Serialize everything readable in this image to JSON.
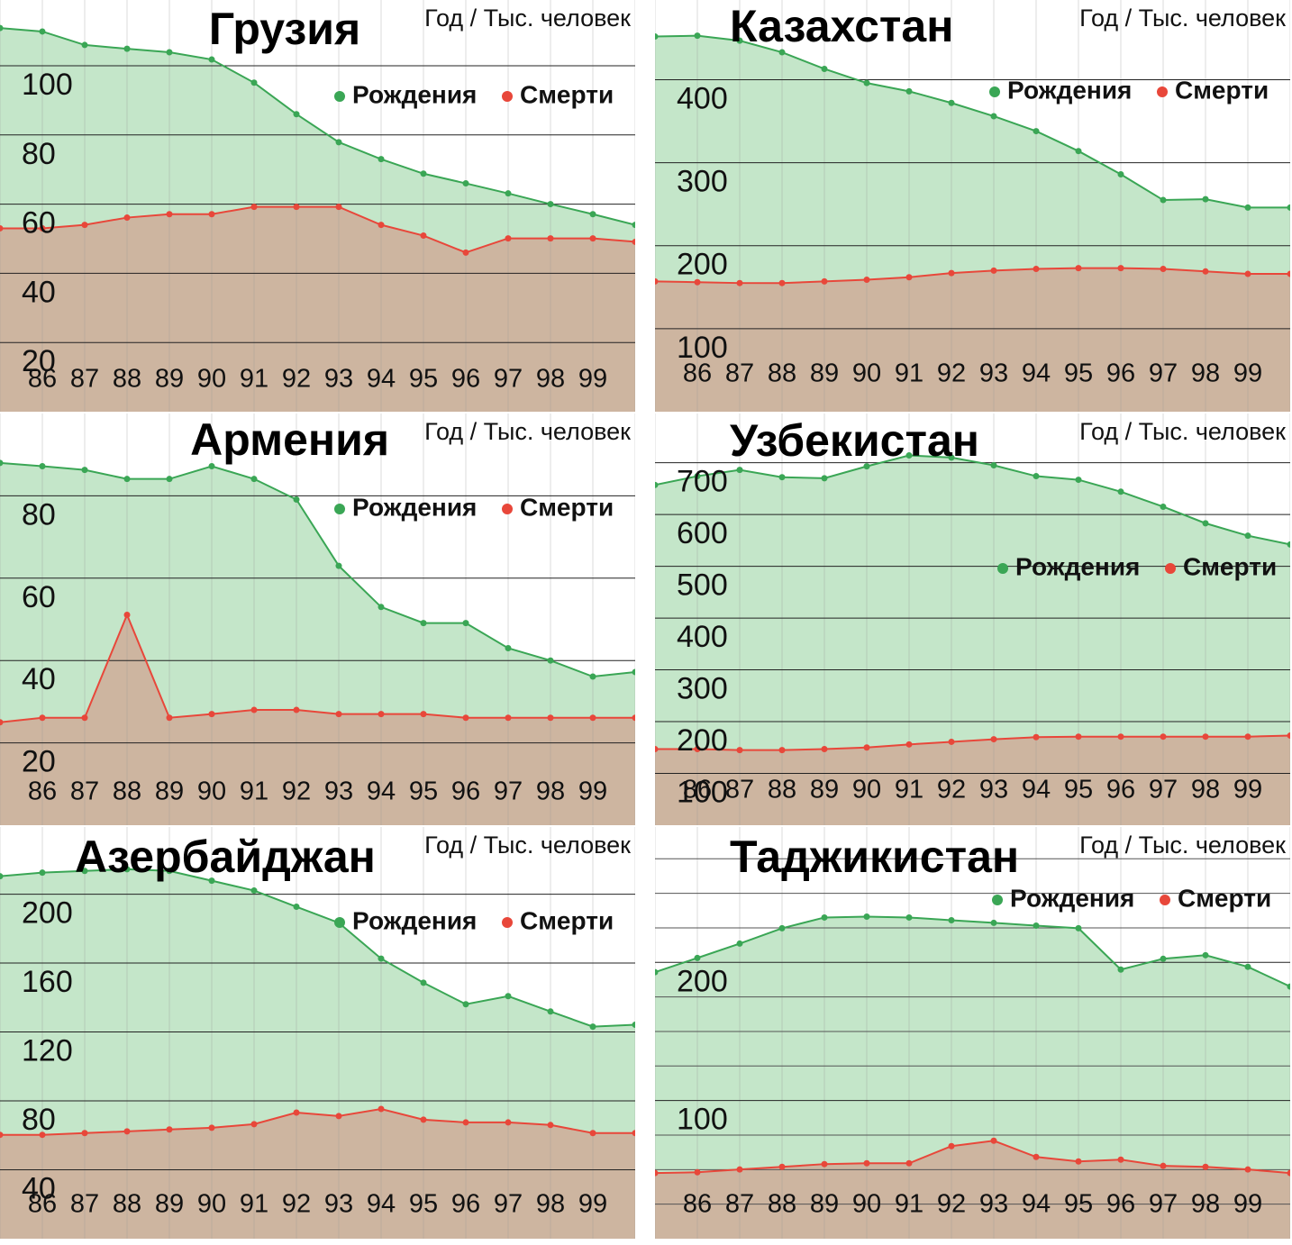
{
  "chart_data": [
    {
      "type": "area",
      "title": "Грузия",
      "note": "Год / Тыс. человек",
      "categories": [
        null,
        "86",
        "87",
        "88",
        "89",
        "90",
        "91",
        "92",
        "93",
        "94",
        "95",
        "96",
        "97",
        "98",
        "99",
        null
      ],
      "series": [
        {
          "name": "Рождения",
          "color": "#3aa655",
          "fill": "#c4e6c9",
          "values": [
            110.9,
            109.9,
            106,
            104.9,
            103.9,
            101.8,
            95.1,
            86,
            77.9,
            73,
            68.8,
            66,
            63.1,
            60,
            57.1,
            54
          ]
        },
        {
          "name": "Смерти",
          "color": "#e8473a",
          "fill": "#cdb5a0",
          "values": [
            53,
            53,
            54,
            56.1,
            57.1,
            57.1,
            59.2,
            59.2,
            59.2,
            54,
            50.9,
            46,
            50.1,
            50.1,
            50.1,
            49.1
          ]
        }
      ],
      "ylim": [
        0,
        119
      ],
      "yticks": [
        20,
        40,
        60,
        80,
        100
      ],
      "grid": true
    },
    {
      "type": "area",
      "title": "Казахстан",
      "note": "Год / Тыс. человек",
      "categories": [
        null,
        "86",
        "87",
        "88",
        "89",
        "90",
        "91",
        "92",
        "93",
        "94",
        "95",
        "96",
        "97",
        "98",
        "99",
        null
      ],
      "series": [
        {
          "name": "Рождения",
          "color": "#3aa655",
          "fill": "#c4e6c9",
          "values": [
            452,
            453,
            447,
            433,
            413,
            396,
            386,
            372,
            356,
            338,
            314,
            286,
            255,
            256,
            246,
            246
          ]
        },
        {
          "name": "Смерти",
          "color": "#e8473a",
          "fill": "#cdb5a0",
          "values": [
            157,
            156,
            155,
            155,
            157,
            159,
            162,
            167,
            170,
            172,
            173,
            173,
            172,
            169,
            166,
            166
          ]
        }
      ],
      "ylim": [
        0,
        496
      ],
      "yticks": [
        100,
        200,
        300,
        400
      ],
      "grid": true
    },
    {
      "type": "area",
      "title": "Армения",
      "note": "Год / Тыс. человек",
      "categories": [
        null,
        "86",
        "87",
        "88",
        "89",
        "90",
        "91",
        "92",
        "93",
        "94",
        "95",
        "96",
        "97",
        "98",
        "99",
        null
      ],
      "series": [
        {
          "name": "Рождения",
          "color": "#3aa655",
          "fill": "#c4e6c9",
          "values": [
            88,
            87.2,
            86.3,
            84.1,
            84.1,
            87.2,
            84.1,
            79.1,
            63,
            53,
            49.1,
            49.1,
            43,
            40,
            36.1,
            37.2
          ]
        },
        {
          "name": "Смерти",
          "color": "#e8473a",
          "fill": "#cdb5a0",
          "values": [
            25,
            26.1,
            26.1,
            51.1,
            26.1,
            27,
            28,
            28,
            27,
            27,
            27,
            26.1,
            26.1,
            26.1,
            26.1,
            26.1
          ]
        }
      ],
      "ylim": [
        0,
        100
      ],
      "yticks": [
        20,
        40,
        60,
        80
      ],
      "grid": true
    },
    {
      "type": "area",
      "title": "Узбекистан",
      "note": "Год / Тыс. человек",
      "categories": [
        null,
        "86",
        "87",
        "88",
        "89",
        "90",
        "91",
        "92",
        "93",
        "94",
        "95",
        "96",
        "97",
        "98",
        "99",
        null
      ],
      "series": [
        {
          "name": "Рождения",
          "color": "#3aa655",
          "fill": "#c4e6c9",
          "values": [
            657,
            674,
            686,
            672,
            670,
            693,
            714,
            710,
            695,
            674,
            667,
            644,
            615,
            583,
            559,
            542
          ]
        },
        {
          "name": "Смерти",
          "color": "#e8473a",
          "fill": "#cdb5a0",
          "values": [
            147,
            147,
            145,
            145,
            147,
            150,
            156,
            161,
            166,
            170,
            171,
            171,
            171,
            171,
            171,
            173
          ]
        }
      ],
      "ylim": [
        0,
        795
      ],
      "yticks": [
        100,
        200,
        300,
        400,
        500,
        600,
        700
      ],
      "grid": true
    },
    {
      "type": "area",
      "title": "Азербайджан",
      "note": "Год / Тыс. человек",
      "categories": [
        null,
        "86",
        "87",
        "88",
        "89",
        "90",
        "91",
        "92",
        "93",
        "94",
        "95",
        "96",
        "97",
        "98",
        "99",
        null
      ],
      "series": [
        {
          "name": "Рождения",
          "color": "#3aa655",
          "fill": "#c4e6c9",
          "values": [
            210.4,
            212.5,
            213.5,
            214.5,
            213.5,
            207.8,
            202.1,
            192.7,
            183.4,
            162.6,
            148.6,
            136.1,
            140.8,
            131.9,
            123.1,
            124.2
          ]
        },
        {
          "name": "Смерти",
          "color": "#e8473a",
          "fill": "#cdb5a0",
          "values": [
            60.3,
            60.3,
            61.3,
            62.3,
            63.4,
            64.4,
            66.5,
            73.2,
            71.2,
            75.3,
            69.1,
            67.5,
            67.5,
            66,
            61.3,
            61.3
          ]
        }
      ],
      "ylim": [
        0,
        239
      ],
      "yticks": [
        40,
        80,
        120,
        160,
        200
      ],
      "grid": true
    },
    {
      "type": "area",
      "title": "Таджикистан",
      "note": "Год / Тыс. человек",
      "categories": [
        null,
        "86",
        "87",
        "88",
        "89",
        "90",
        "91",
        "92",
        "93",
        "94",
        "95",
        "96",
        "97",
        "98",
        "99",
        null
      ],
      "series": [
        {
          "name": "Рождения",
          "color": "#3aa655",
          "fill": "#c4e6c9",
          "values": [
            192.9,
            203.2,
            213.6,
            224.7,
            232.5,
            233.1,
            232.5,
            230.5,
            228.6,
            226.6,
            224.7,
            194.8,
            202.6,
            205.2,
            196.8,
            182.5
          ]
        },
        {
          "name": "Смерти",
          "color": "#e8473a",
          "fill": "#cdb5a0",
          "values": [
            47.5,
            48.1,
            50.1,
            52,
            54,
            54.6,
            54.6,
            67,
            70.9,
            59.2,
            55.9,
            57.2,
            52.7,
            52,
            50.1,
            47.5
          ]
        }
      ],
      "ylim": [
        0,
        298
      ],
      "yticks": [
        100,
        200
      ],
      "minor_yticks": [
        25,
        50,
        75,
        125,
        150,
        175,
        225,
        250,
        275
      ],
      "grid": true
    }
  ]
}
